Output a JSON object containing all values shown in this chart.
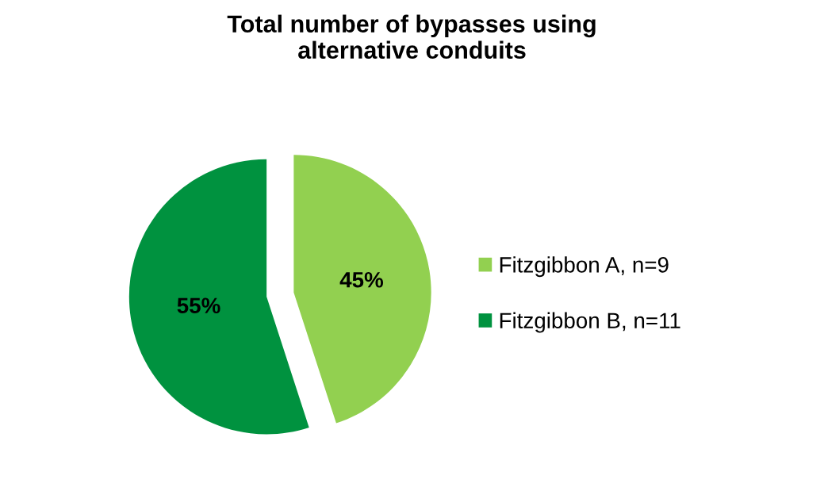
{
  "chart_data": {
    "type": "pie",
    "title": "Total number of bypasses using\nalternative conduits",
    "categories": [
      "Fitzgibbon A, n=9",
      "Fitzgibbon B, n=11"
    ],
    "values": [
      45,
      55
    ],
    "colors": [
      "#92d050",
      "#00923f"
    ],
    "value_labels": [
      "45%",
      "55%"
    ],
    "legend": "right"
  }
}
